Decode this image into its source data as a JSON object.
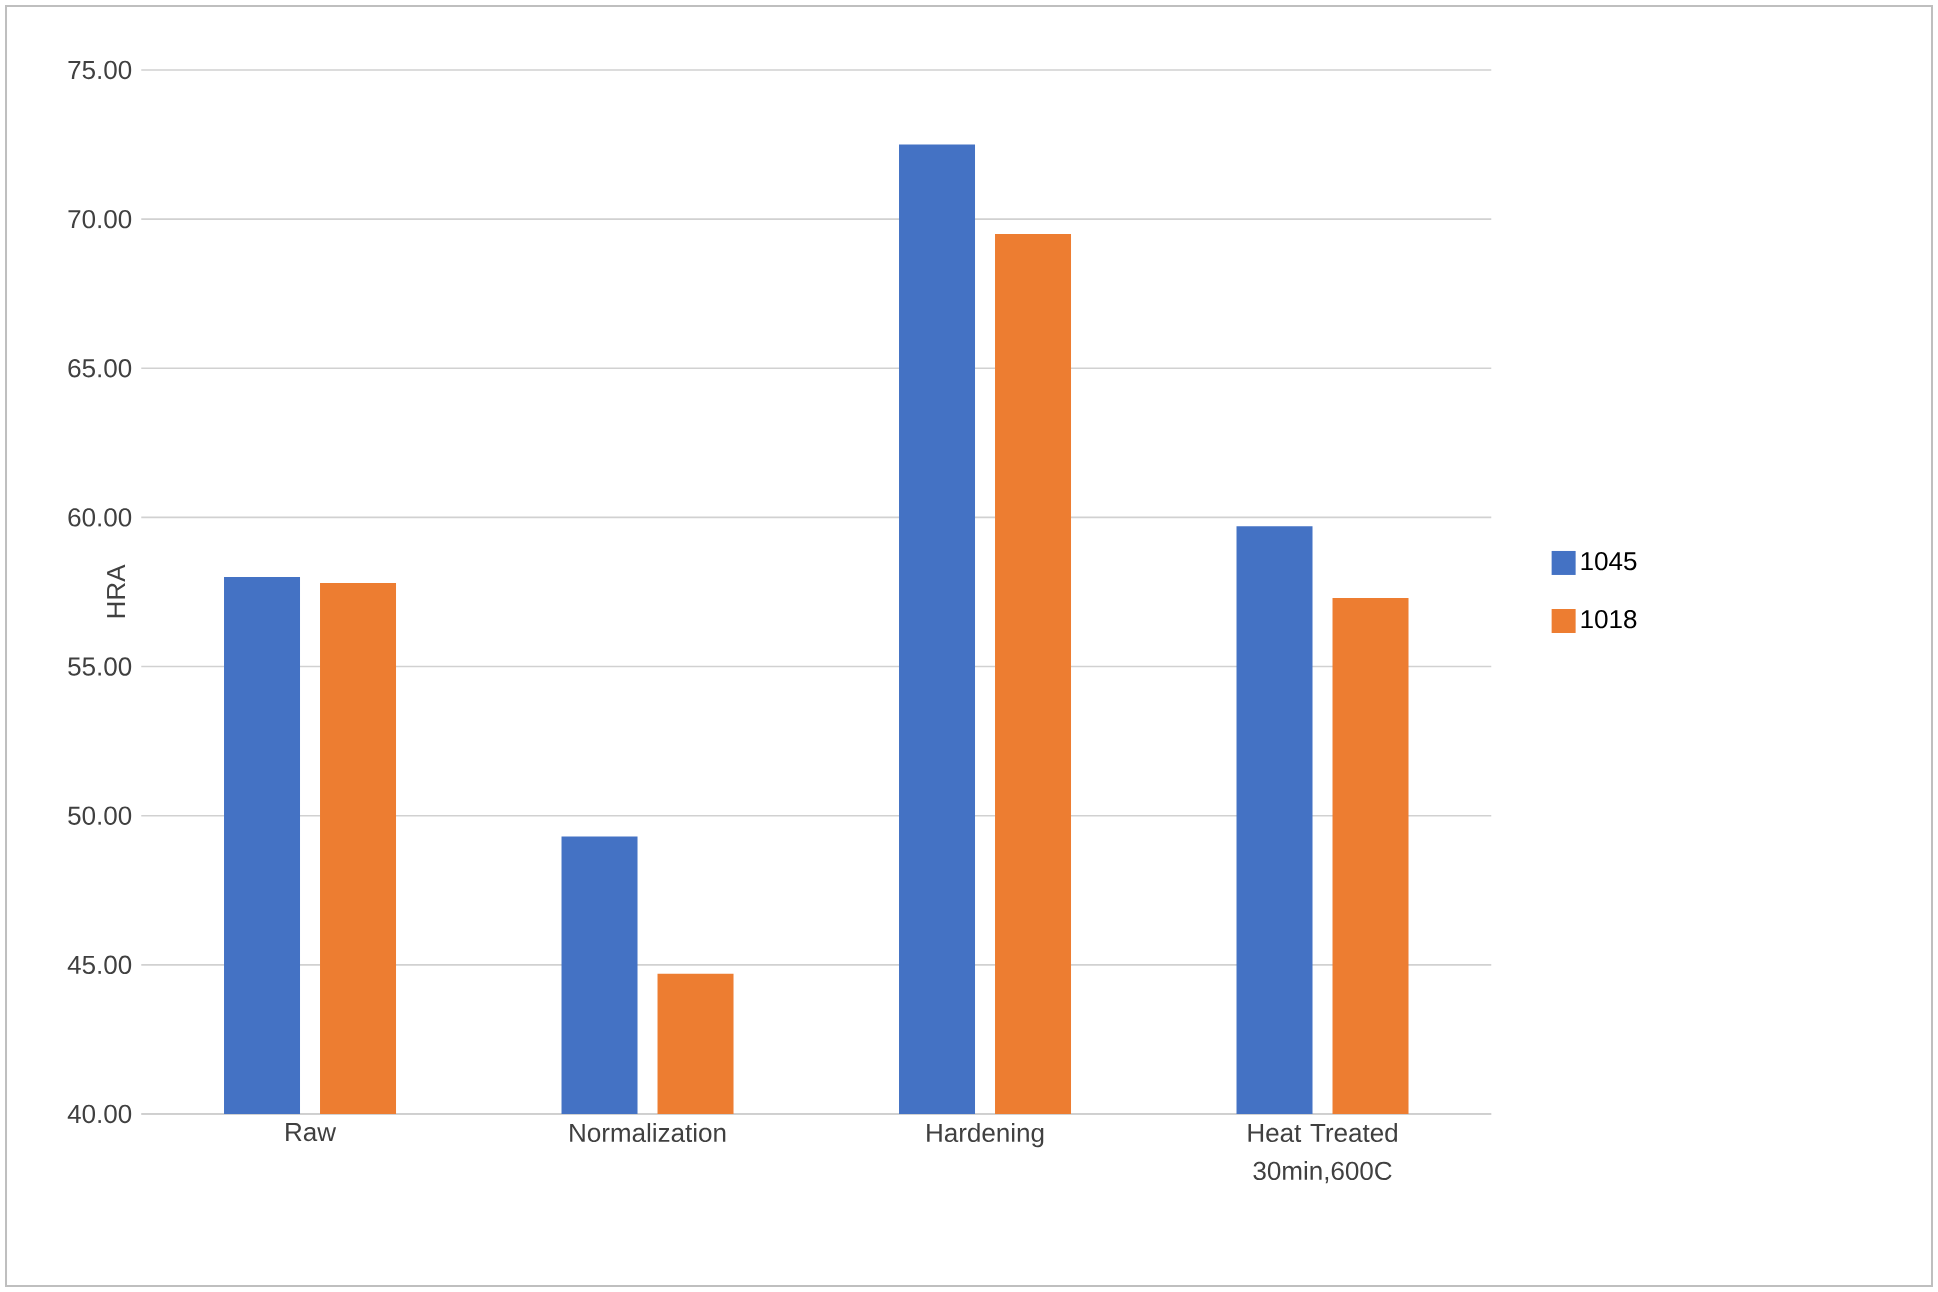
{
  "chart_data": {
    "type": "bar",
    "ylabel": "HRA",
    "categories": [
      "Raw",
      "Normalization",
      "Hardening",
      "Heat Treated 30min,600C"
    ],
    "series": [
      {
        "name": "1045",
        "color": "#4472c4",
        "values": [
          58.0,
          49.3,
          72.5,
          59.7
        ]
      },
      {
        "name": "1018",
        "color": "#ed7d31",
        "values": [
          57.8,
          44.7,
          69.5,
          57.3
        ]
      }
    ],
    "ylim": [
      40,
      75
    ],
    "yticks": [
      {
        "value": 40,
        "label": "40.00"
      },
      {
        "value": 45,
        "label": "45.00"
      },
      {
        "value": 50,
        "label": "50.00"
      },
      {
        "value": 55,
        "label": "55.00"
      },
      {
        "value": 60,
        "label": "60.00"
      },
      {
        "value": 65,
        "label": "65.00"
      },
      {
        "value": 70,
        "label": "70.00"
      },
      {
        "value": 75,
        "label": "75.00"
      }
    ],
    "grid": "y",
    "legend": "right"
  }
}
